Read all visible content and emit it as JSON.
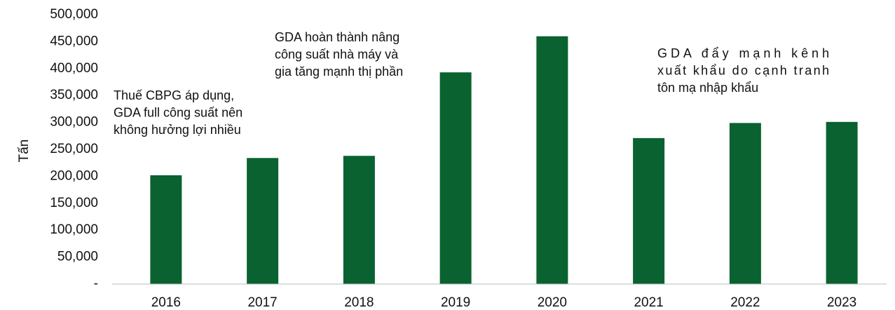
{
  "chart_data": {
    "type": "bar",
    "y_label": "Tấn",
    "categories": [
      "2016",
      "2017",
      "2018",
      "2019",
      "2020",
      "2021",
      "2022",
      "2023"
    ],
    "values": [
      202000,
      234000,
      238000,
      393000,
      460000,
      271000,
      299000,
      301000
    ],
    "color": "#09622f",
    "ylim": [
      0,
      500000
    ],
    "yticks": [
      {
        "value": 0,
        "label": "-"
      },
      {
        "value": 50000,
        "label": "50,000"
      },
      {
        "value": 100000,
        "label": "100,000"
      },
      {
        "value": 150000,
        "label": "150,000"
      },
      {
        "value": 200000,
        "label": "200,000"
      },
      {
        "value": 250000,
        "label": "250,000"
      },
      {
        "value": 300000,
        "label": "300,000"
      },
      {
        "value": 350000,
        "label": "350,000"
      },
      {
        "value": 400000,
        "label": "400,000"
      },
      {
        "value": 450000,
        "label": "450,000"
      },
      {
        "value": 500000,
        "label": "500,000"
      }
    ],
    "grid": false,
    "annotations": [
      {
        "lines": [
          "Thuế CBPG áp dụng,",
          "GDA full công suất nên",
          "không hưởng lợi nhiều"
        ]
      },
      {
        "lines": [
          "GDA hoàn thành nâng",
          "công suất nhà máy  và",
          "gia tăng mạnh thị phần"
        ]
      },
      {
        "lines": [
          "GDA đẩy mạnh kênh",
          "xuất khẩu do cạnh tranh",
          "tôn mạ nhập khẩu"
        ]
      }
    ]
  }
}
